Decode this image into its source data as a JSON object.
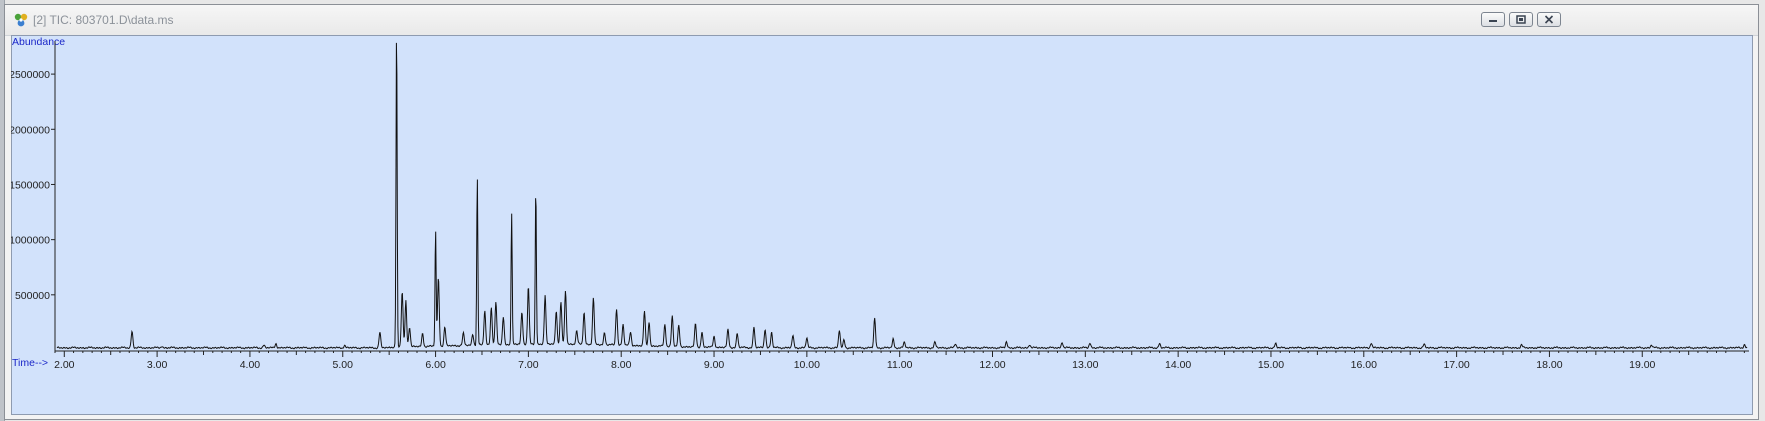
{
  "window": {
    "title": "[2] TIC: 803701.D\\data.ms",
    "icon": "chromatogram-app-icon",
    "controls": [
      "minimize-icon",
      "restore-icon",
      "close-icon"
    ]
  },
  "colors": {
    "plot_background": "#d2e2fb",
    "trace": "#111111",
    "axis_title": "#1a26c8"
  },
  "chart_data": {
    "type": "line",
    "title": "",
    "xlabel": "Time-->",
    "ylabel": "Abundance",
    "xlim": [
      1.9,
      20.15
    ],
    "ylim": [
      0,
      2800000
    ],
    "grid": false,
    "x_ticks": [
      "2.00",
      "3.00",
      "4.00",
      "5.00",
      "6.00",
      "7.00",
      "8.00",
      "9.00",
      "10.00",
      "11.00",
      "12.00",
      "13.00",
      "14.00",
      "15.00",
      "16.00",
      "17.00",
      "18.00",
      "19.00"
    ],
    "y_ticks": [
      "500000",
      "1000000",
      "1500000",
      "2000000",
      "2500000"
    ],
    "baseline": 20000,
    "series": [
      {
        "peaks": [
          [
            2.73,
            150000
          ],
          [
            3.05,
            15000
          ],
          [
            4.15,
            25000
          ],
          [
            4.28,
            40000
          ],
          [
            5.02,
            22000
          ],
          [
            5.4,
            140000
          ],
          [
            5.58,
            2900000
          ],
          [
            5.64,
            500000
          ],
          [
            5.68,
            420000
          ],
          [
            5.72,
            180000
          ],
          [
            5.86,
            120000
          ],
          [
            6.0,
            1050000
          ],
          [
            6.03,
            620000
          ],
          [
            6.1,
            170000
          ],
          [
            6.3,
            110000
          ],
          [
            6.4,
            100000
          ],
          [
            6.45,
            1520000
          ],
          [
            6.53,
            310000
          ],
          [
            6.6,
            340000
          ],
          [
            6.65,
            380000
          ],
          [
            6.73,
            250000
          ],
          [
            6.82,
            1190000
          ],
          [
            6.93,
            290000
          ],
          [
            7.0,
            520000
          ],
          [
            7.08,
            1420000
          ],
          [
            7.18,
            440000
          ],
          [
            7.3,
            300000
          ],
          [
            7.35,
            380000
          ],
          [
            7.4,
            480000
          ],
          [
            7.52,
            120000
          ],
          [
            7.6,
            290000
          ],
          [
            7.7,
            420000
          ],
          [
            7.82,
            110000
          ],
          [
            7.95,
            330000
          ],
          [
            8.02,
            190000
          ],
          [
            8.1,
            120000
          ],
          [
            8.25,
            310000
          ],
          [
            8.3,
            220000
          ],
          [
            8.47,
            200000
          ],
          [
            8.55,
            280000
          ],
          [
            8.62,
            190000
          ],
          [
            8.8,
            210000
          ],
          [
            8.87,
            140000
          ],
          [
            9.0,
            100000
          ],
          [
            9.15,
            160000
          ],
          [
            9.25,
            130000
          ],
          [
            9.43,
            190000
          ],
          [
            9.55,
            170000
          ],
          [
            9.62,
            140000
          ],
          [
            9.85,
            110000
          ],
          [
            10.0,
            90000
          ],
          [
            10.35,
            160000
          ],
          [
            10.4,
            70000
          ],
          [
            10.73,
            270000
          ],
          [
            10.93,
            80000
          ],
          [
            11.05,
            50000
          ],
          [
            11.38,
            50000
          ],
          [
            11.6,
            35000
          ],
          [
            12.15,
            55000
          ],
          [
            12.4,
            30000
          ],
          [
            12.75,
            50000
          ],
          [
            13.05,
            45000
          ],
          [
            13.8,
            40000
          ],
          [
            15.05,
            40000
          ],
          [
            16.08,
            45000
          ],
          [
            16.65,
            30000
          ],
          [
            17.7,
            25000
          ],
          [
            19.1,
            25000
          ],
          [
            20.1,
            30000
          ]
        ]
      }
    ]
  }
}
